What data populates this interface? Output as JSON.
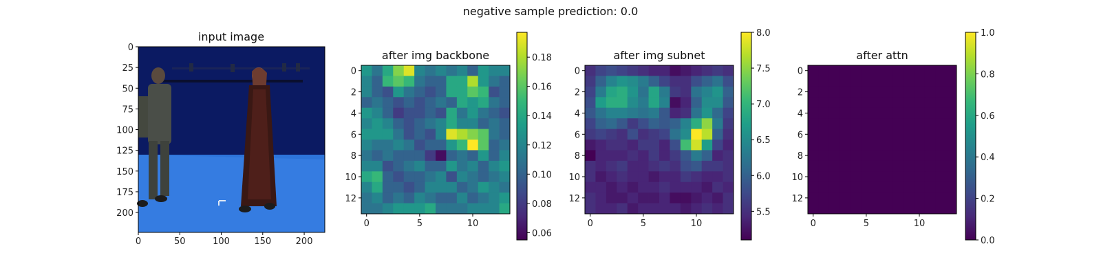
{
  "suptitle": "negative sample     prediction: 0.0",
  "colors": {
    "viridis": [
      "#440154",
      "#482878",
      "#3e4989",
      "#31688e",
      "#26828e",
      "#1f9e89",
      "#35b779",
      "#6ece58",
      "#b5de2b",
      "#fde725"
    ],
    "scene_wall": "#0c1e6e",
    "scene_floor": "#2a6fd6"
  },
  "chart_data": [
    {
      "type": "image",
      "title": "input image",
      "image_shape": [
        224,
        224
      ],
      "xticks": [
        0,
        50,
        100,
        150,
        200
      ],
      "yticks": [
        0,
        25,
        50,
        75,
        100,
        125,
        150,
        175,
        200
      ],
      "description_visible": "photograph of two people standing in a blue motion-capture studio"
    },
    {
      "type": "heatmap",
      "title": "after img backbone",
      "rows": 14,
      "cols": 14,
      "xticks": [
        0,
        5,
        10
      ],
      "yticks": [
        0,
        2,
        4,
        6,
        8,
        10,
        12
      ],
      "vmin": 0.055,
      "vmax": 0.197,
      "colorbar_ticks": [
        0.06,
        0.08,
        0.1,
        0.12,
        0.14,
        0.16,
        0.18
      ],
      "colorbar_labels": [
        "0.06",
        "0.08",
        "0.10",
        "0.12",
        "0.14",
        "0.16",
        "0.18"
      ],
      "values": [
        [
          0.13,
          0.11,
          0.14,
          0.17,
          0.19,
          0.12,
          0.11,
          0.12,
          0.11,
          0.12,
          0.1,
          0.13,
          0.12,
          0.12
        ],
        [
          0.12,
          0.1,
          0.15,
          0.16,
          0.15,
          0.11,
          0.1,
          0.1,
          0.14,
          0.14,
          0.18,
          0.13,
          0.11,
          0.1
        ],
        [
          0.12,
          0.1,
          0.09,
          0.13,
          0.11,
          0.1,
          0.09,
          0.1,
          0.14,
          0.14,
          0.16,
          0.15,
          0.09,
          0.1
        ],
        [
          0.1,
          0.11,
          0.1,
          0.09,
          0.1,
          0.09,
          0.1,
          0.11,
          0.1,
          0.14,
          0.13,
          0.14,
          0.11,
          0.1
        ],
        [
          0.13,
          0.12,
          0.1,
          0.08,
          0.09,
          0.09,
          0.1,
          0.09,
          0.14,
          0.11,
          0.13,
          0.11,
          0.1,
          0.09
        ],
        [
          0.12,
          0.13,
          0.12,
          0.1,
          0.09,
          0.1,
          0.11,
          0.12,
          0.14,
          0.12,
          0.12,
          0.1,
          0.11,
          0.1
        ],
        [
          0.13,
          0.13,
          0.13,
          0.11,
          0.09,
          0.1,
          0.09,
          0.12,
          0.19,
          0.18,
          0.17,
          0.16,
          0.11,
          0.1
        ],
        [
          0.12,
          0.11,
          0.11,
          0.12,
          0.11,
          0.09,
          0.1,
          0.1,
          0.13,
          0.15,
          0.2,
          0.16,
          0.1,
          0.11
        ],
        [
          0.11,
          0.1,
          0.11,
          0.1,
          0.1,
          0.1,
          0.08,
          0.06,
          0.1,
          0.11,
          0.1,
          0.13,
          0.1,
          0.12
        ],
        [
          0.12,
          0.12,
          0.09,
          0.1,
          0.11,
          0.12,
          0.1,
          0.1,
          0.13,
          0.11,
          0.12,
          0.1,
          0.12,
          0.13
        ],
        [
          0.14,
          0.15,
          0.1,
          0.09,
          0.1,
          0.1,
          0.11,
          0.12,
          0.09,
          0.12,
          0.11,
          0.1,
          0.11,
          0.12
        ],
        [
          0.12,
          0.14,
          0.1,
          0.1,
          0.09,
          0.1,
          0.12,
          0.12,
          0.12,
          0.1,
          0.11,
          0.13,
          0.12,
          0.11
        ],
        [
          0.11,
          0.12,
          0.1,
          0.11,
          0.1,
          0.12,
          0.11,
          0.1,
          0.1,
          0.12,
          0.1,
          0.11,
          0.12,
          0.13
        ],
        [
          0.11,
          0.11,
          0.12,
          0.13,
          0.13,
          0.13,
          0.14,
          0.11,
          0.11,
          0.11,
          0.12,
          0.12,
          0.12,
          0.14
        ]
      ]
    },
    {
      "type": "heatmap",
      "title": "after img subnet",
      "rows": 14,
      "cols": 14,
      "xticks": [
        0,
        5,
        10
      ],
      "yticks": [
        0,
        2,
        4,
        6,
        8,
        10,
        12
      ],
      "vmin": 5.1,
      "vmax": 8.0,
      "colorbar_ticks": [
        5.5,
        6.0,
        6.5,
        7.0,
        7.5,
        8.0
      ],
      "colorbar_labels": [
        "5.5",
        "6.0",
        "6.5",
        "7.0",
        "7.5",
        "8.0"
      ],
      "values": [
        [
          5.5,
          5.7,
          5.8,
          5.7,
          5.6,
          5.5,
          5.4,
          5.4,
          5.2,
          5.3,
          5.4,
          5.5,
          5.6,
          5.5
        ],
        [
          5.6,
          6.0,
          6.4,
          6.6,
          6.5,
          6.3,
          6.0,
          5.7,
          5.5,
          5.5,
          5.8,
          6.0,
          6.2,
          5.8
        ],
        [
          5.7,
          6.3,
          6.8,
          6.9,
          6.6,
          6.2,
          6.8,
          6.3,
          5.6,
          5.5,
          6.2,
          6.4,
          6.6,
          6.0
        ],
        [
          5.8,
          6.7,
          6.9,
          6.9,
          6.5,
          6.3,
          6.8,
          6.4,
          5.2,
          5.4,
          6.0,
          6.5,
          6.5,
          5.9
        ],
        [
          5.9,
          6.2,
          6.4,
          6.4,
          6.3,
          6.2,
          6.3,
          5.9,
          5.4,
          5.5,
          6.2,
          6.6,
          6.1,
          5.7
        ],
        [
          5.7,
          6.0,
          6.1,
          5.9,
          5.6,
          5.8,
          6.0,
          5.9,
          6.0,
          6.4,
          6.9,
          7.5,
          6.3,
          5.6
        ],
        [
          5.6,
          5.7,
          5.6,
          5.5,
          5.8,
          5.5,
          5.6,
          5.7,
          6.2,
          6.5,
          8.0,
          7.7,
          6.0,
          5.5
        ],
        [
          5.3,
          5.4,
          5.5,
          5.5,
          5.4,
          5.6,
          5.6,
          5.4,
          5.8,
          7.1,
          7.8,
          6.7,
          5.7,
          5.4
        ],
        [
          5.1,
          5.4,
          5.4,
          5.4,
          5.5,
          5.4,
          5.6,
          5.4,
          5.6,
          5.9,
          6.3,
          6.0,
          5.4,
          5.5
        ],
        [
          5.5,
          5.4,
          5.5,
          5.6,
          5.4,
          5.4,
          5.5,
          5.6,
          5.5,
          5.8,
          5.9,
          5.6,
          5.6,
          5.5
        ],
        [
          5.5,
          5.3,
          5.4,
          5.5,
          5.4,
          5.4,
          5.3,
          5.4,
          5.4,
          5.6,
          5.5,
          5.4,
          5.4,
          5.5
        ],
        [
          5.4,
          5.4,
          5.3,
          5.4,
          5.3,
          5.4,
          5.4,
          5.5,
          5.4,
          5.4,
          5.4,
          5.3,
          5.5,
          5.4
        ],
        [
          5.5,
          5.4,
          5.3,
          5.3,
          5.4,
          5.3,
          5.3,
          5.4,
          5.2,
          5.2,
          5.3,
          5.4,
          5.3,
          5.5
        ],
        [
          5.5,
          5.4,
          5.4,
          5.5,
          5.3,
          5.4,
          5.4,
          5.4,
          5.4,
          5.3,
          5.4,
          5.5,
          5.4,
          5.5
        ]
      ]
    },
    {
      "type": "heatmap",
      "title": "after attn",
      "rows": 14,
      "cols": 14,
      "xticks": [
        0,
        5,
        10
      ],
      "yticks": [
        0,
        2,
        4,
        6,
        8,
        10,
        12
      ],
      "vmin": 0.0,
      "vmax": 1.0,
      "colorbar_ticks": [
        0.0,
        0.2,
        0.4,
        0.6,
        0.8,
        1.0
      ],
      "colorbar_labels": [
        "0.0",
        "0.2",
        "0.4",
        "0.6",
        "0.8",
        "1.0"
      ],
      "fill_value": 0.0
    }
  ]
}
